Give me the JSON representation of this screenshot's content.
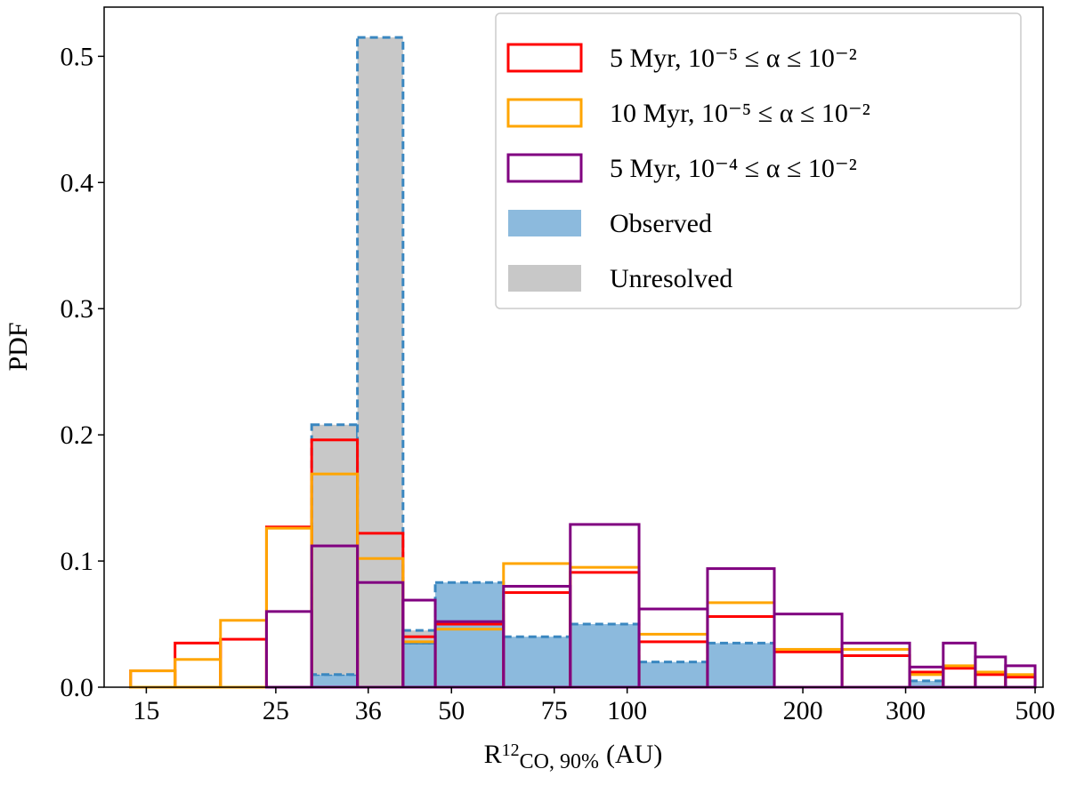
{
  "chart_data": {
    "type": "histogram",
    "ylabel": "PDF",
    "xlabel": {
      "main": "R",
      "sup": "12",
      "sub": "CO, 90%",
      "unit": "(AU)"
    },
    "log_x": true,
    "xlim": [
      12.7,
      516
    ],
    "ylim": [
      0,
      0.539
    ],
    "xticks": [
      15,
      25,
      36,
      50,
      75,
      100,
      200,
      300,
      500
    ],
    "yticks": [
      {
        "value": 0,
        "label": "0.0"
      },
      0.1,
      0.2,
      0.3,
      0.4,
      0.5
    ],
    "legend": "upper right",
    "bins": [
      14.1,
      16.8,
      20.1,
      24.1,
      28.8,
      34.5,
      41.3,
      46.9,
      61.4,
      79.9,
      104.8,
      137.3,
      178.7,
      233.4,
      304.8,
      348,
      395,
      445,
      500
    ],
    "series": [
      {
        "name": "5 Myr, 10⁻⁵ ≤ α ≤ 10⁻²",
        "color": "#ff0000",
        "style": "step",
        "values": [
          0.013,
          0.035,
          0.038,
          0.127,
          0.196,
          0.122,
          0.04,
          0.05,
          0.075,
          0.091,
          0.036,
          0.056,
          0.028,
          0.025,
          0.012,
          0.015,
          0.01,
          0.008
        ]
      },
      {
        "name": "10 Myr, 10⁻⁵ ≤ α ≤ 10⁻²",
        "color": "#ffa500",
        "style": "step",
        "values": [
          0.013,
          0.022,
          0.053,
          0.126,
          0.169,
          0.102,
          0.036,
          0.046,
          0.098,
          0.095,
          0.042,
          0.067,
          0.03,
          0.03,
          0.01,
          0.017,
          0.012,
          0.01
        ]
      },
      {
        "name": "5 Myr, 10⁻⁴ ≤ α ≤ 10⁻²",
        "color": "#800080",
        "style": "step",
        "values": [
          0,
          0,
          0,
          0.06,
          0.112,
          0.083,
          0.069,
          0.052,
          0.08,
          0.129,
          0.062,
          0.094,
          0.058,
          0.035,
          0.016,
          0.035,
          0.024,
          0.017
        ]
      },
      {
        "name": "Observed",
        "color": "#8cbadd",
        "style": "filled",
        "values": [
          0,
          0,
          0,
          0,
          0.01,
          0,
          0.035,
          0.083,
          0.04,
          0.05,
          0.02,
          0.035,
          0,
          0,
          0.005,
          0,
          0,
          0
        ]
      },
      {
        "name": "Unresolved",
        "color": "#c8c8c8",
        "style": "filled",
        "values": [
          0,
          0,
          0,
          0,
          0.198,
          0.515,
          0.01,
          0,
          0,
          0,
          0,
          0,
          0,
          0,
          0,
          0,
          0,
          0
        ]
      }
    ]
  }
}
